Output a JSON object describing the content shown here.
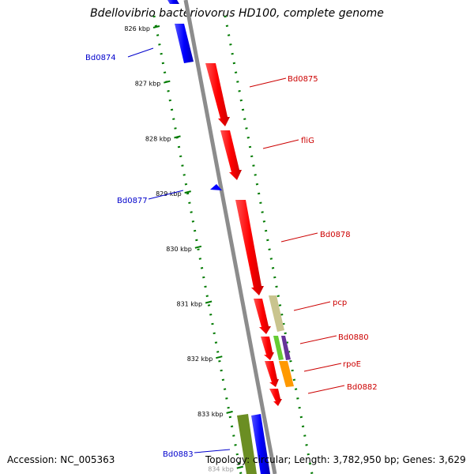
{
  "title": "Bdellovibrio bacteriovorus HD100, complete genome",
  "footer": {
    "accession": "Accession: NC_005363",
    "summary": "Topology: circular; Length: 3,782,950 bp; Genes: 3,629"
  },
  "ticks": [
    "826 kbp",
    "827 kbp",
    "828 kbp",
    "829 kbp",
    "830 kbp",
    "831 kbp",
    "832 kbp",
    "833 kbp",
    "834 kbp"
  ],
  "labels": {
    "bd0874": "Bd0874",
    "bd0875": "Bd0875",
    "flig": "fliG",
    "bd0877": "Bd0877",
    "bd0878": "Bd0878",
    "pcp": "pcp",
    "bd0880": "Bd0880",
    "rpoe": "rpoE",
    "bd0882": "Bd0882",
    "bd0883": "Bd0883"
  },
  "colors": {
    "forward_label": "#cc0000",
    "reverse_label": "#0000cc",
    "forward_gene": "#ff0000",
    "reverse_gene": "#0000ff",
    "backbone": "#8c8c8c",
    "tick_marks": "#007a00"
  }
}
